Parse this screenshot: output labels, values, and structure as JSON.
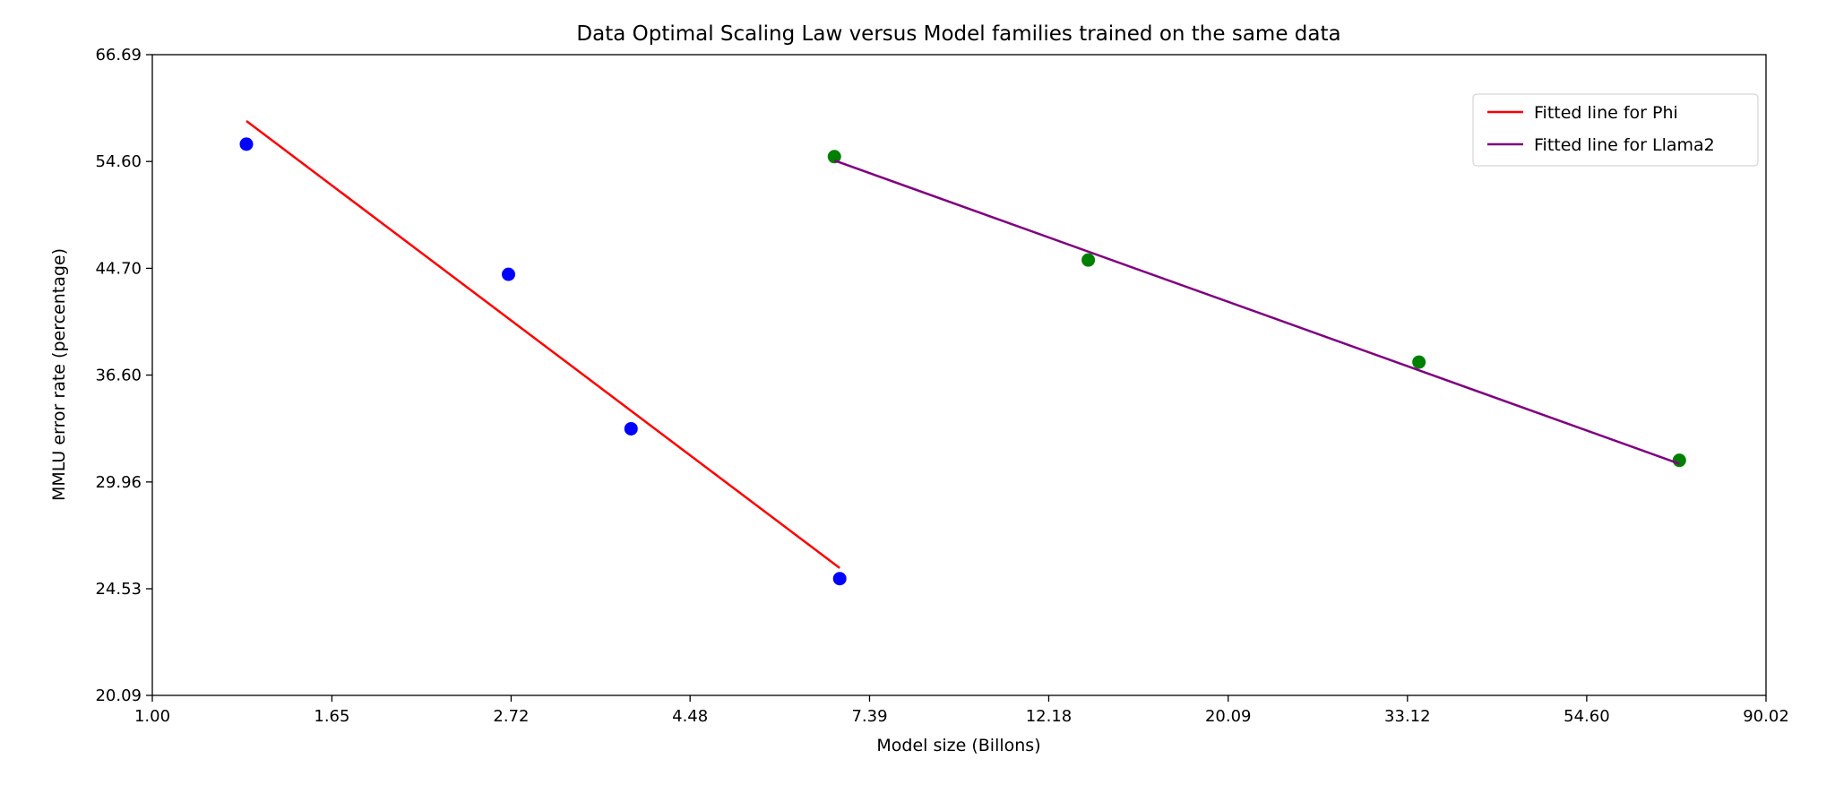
{
  "chart_data": {
    "type": "scatter",
    "title": "Data Optimal Scaling Law versus Model families trained on the same data",
    "xlabel": "Model size (Billons)",
    "ylabel": "MMLU error rate (percentage)",
    "xscale": "log",
    "yscale": "log",
    "xlim": [
      1.0,
      90.02
    ],
    "ylim": [
      20.09,
      66.69
    ],
    "xticks": [
      "1.00",
      "1.65",
      "2.72",
      "4.48",
      "7.39",
      "12.18",
      "20.09",
      "33.12",
      "54.60",
      "90.02"
    ],
    "yticks": [
      "20.09",
      "24.53",
      "29.96",
      "36.60",
      "44.70",
      "54.60",
      "66.69"
    ],
    "grid": false,
    "legend_position": "top-right",
    "series": [
      {
        "kind": "points",
        "color": "#0000ff",
        "x": [
          1.3,
          2.7,
          3.8,
          6.8
        ],
        "y": [
          56.4,
          44.2,
          33.1,
          25.0
        ]
      },
      {
        "kind": "points",
        "color": "#008000",
        "x": [
          6.7,
          13.6,
          34.2,
          70.7
        ],
        "y": [
          55.1,
          45.4,
          37.5,
          31.2
        ]
      },
      {
        "kind": "line",
        "name": "Fitted line for Phi",
        "color": "#ff0000",
        "x": [
          1.3,
          6.8
        ],
        "y": [
          58.9,
          25.5
        ]
      },
      {
        "kind": "line",
        "name": "Fitted line for Llama2",
        "color": "#800080",
        "x": [
          6.7,
          70.7
        ],
        "y": [
          54.7,
          31.0
        ]
      }
    ]
  }
}
